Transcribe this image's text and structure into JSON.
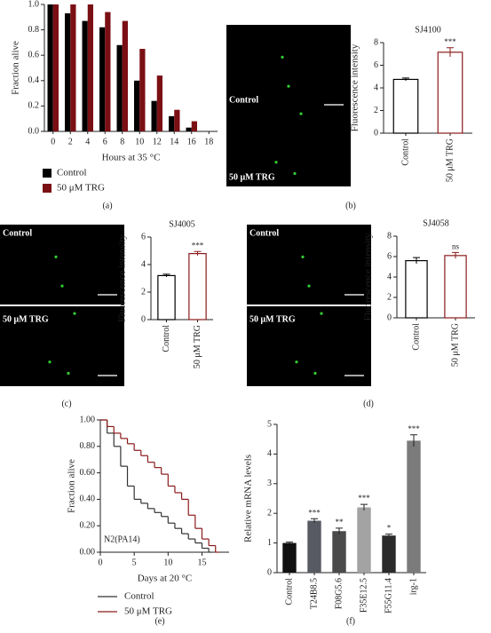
{
  "chart_data": [
    {
      "type": "bar",
      "panel_label": "(a)",
      "x_label": "Hours at 35 °C",
      "y_label": "Fraction alive",
      "categories": [
        "0",
        "2",
        "4",
        "6",
        "8",
        "10",
        "12",
        "14",
        "16",
        "18"
      ],
      "series": [
        {
          "name": "Control",
          "color": "#000000",
          "values": [
            1.0,
            0.93,
            0.87,
            0.82,
            0.68,
            0.4,
            0.24,
            0.12,
            0.03,
            0
          ]
        },
        {
          "name": "50 μM TRG",
          "color": "#7a0f14",
          "values": [
            1.0,
            1.0,
            1.0,
            0.94,
            0.87,
            0.65,
            0.44,
            0.17,
            0.08,
            0
          ]
        }
      ],
      "ylim": [
        0,
        1.0
      ],
      "yticks": [
        {
          "value": 0,
          "label": "0.0"
        },
        {
          "value": 0.2,
          "label": "0.2"
        },
        {
          "value": 0.4,
          "label": "0.4"
        },
        {
          "value": 0.6,
          "label": "0.6"
        },
        {
          "value": 0.8,
          "label": "0.8"
        },
        {
          "value": 1.0,
          "label": "1.0"
        }
      ]
    },
    {
      "type": "bar",
      "panel_label": "(b)",
      "title": "SJ4100",
      "y_label": "Fluorescence intensity",
      "image_labels": [
        "Control",
        "50 μM TRG"
      ],
      "categories": [
        "Control",
        "50 μM TRG"
      ],
      "values": [
        4.75,
        7.15
      ],
      "errors": [
        0.12,
        0.4
      ],
      "annotations": [
        null,
        "***"
      ],
      "colors": [
        "#000000",
        "#8b1a1a"
      ],
      "filled": false,
      "ylim": [
        0,
        8
      ],
      "yticks": [
        0,
        2,
        4,
        6,
        8
      ]
    },
    {
      "type": "bar",
      "panel_label": "(c)",
      "title": "SJ4005",
      "y_label": "Fluorescence intensity",
      "image_labels": [
        "Control",
        "50 μM TRG"
      ],
      "categories": [
        "Control",
        "50 μM TRG"
      ],
      "values": [
        3.2,
        4.8
      ],
      "errors": [
        0.1,
        0.15
      ],
      "annotations": [
        null,
        "***"
      ],
      "colors": [
        "#000000",
        "#8b1a1a"
      ],
      "filled": false,
      "ylim": [
        0,
        6
      ],
      "yticks": [
        0,
        2,
        4,
        6
      ]
    },
    {
      "type": "bar",
      "panel_label": "(d)",
      "title": "SJ4058",
      "y_label": "Fluorescence intensity",
      "image_labels": [
        "Control",
        "50 μM TRG"
      ],
      "categories": [
        "Control",
        "50 μM TRG"
      ],
      "values": [
        5.6,
        6.1
      ],
      "errors": [
        0.3,
        0.3
      ],
      "annotations": [
        null,
        "ns"
      ],
      "colors": [
        "#000000",
        "#8b1a1a"
      ],
      "filled": false,
      "ylim": [
        0,
        8
      ],
      "yticks": [
        0,
        2,
        4,
        6,
        8
      ]
    },
    {
      "type": "line",
      "step": true,
      "panel_label": "(e)",
      "x_label": "Days at 20 °C",
      "y_label": "Fraction alive",
      "annotation": "N2(PA14)",
      "series": [
        {
          "name": "Control",
          "color": "#333333",
          "x": [
            0,
            1,
            2,
            3,
            4,
            5,
            6,
            7,
            8,
            9,
            10,
            11,
            12,
            13,
            14,
            15,
            16
          ],
          "values": [
            1.0,
            0.9,
            0.8,
            0.65,
            0.5,
            0.4,
            0.37,
            0.33,
            0.3,
            0.27,
            0.22,
            0.18,
            0.14,
            0.1,
            0.07,
            0.03,
            0
          ]
        },
        {
          "name": "50 μM TRG",
          "color": "#8b1a1a",
          "x": [
            0,
            1,
            2,
            3,
            4,
            5,
            6,
            7,
            8,
            9,
            10,
            11,
            12,
            13,
            14,
            15,
            16,
            17
          ],
          "values": [
            1.0,
            0.95,
            0.9,
            0.86,
            0.82,
            0.77,
            0.73,
            0.68,
            0.64,
            0.59,
            0.5,
            0.45,
            0.4,
            0.28,
            0.18,
            0.1,
            0.05,
            0
          ]
        }
      ],
      "xlim": [
        0,
        19
      ],
      "xticks": [
        0,
        5,
        10,
        15
      ],
      "ylim": [
        0,
        1.0
      ],
      "yticks": [
        {
          "value": 0,
          "label": "0.00"
        },
        {
          "value": 0.2,
          "label": "0.20"
        },
        {
          "value": 0.4,
          "label": "0.40"
        },
        {
          "value": 0.6,
          "label": "0.60"
        },
        {
          "value": 0.8,
          "label": "0.80"
        },
        {
          "value": 1.0,
          "label": "1.00"
        }
      ]
    },
    {
      "type": "bar",
      "panel_label": "(f)",
      "y_label": "Relative mRNA levels",
      "categories": [
        "Control",
        "T24B8.5",
        "F08G5.6",
        "F35E12.5",
        "F55G11.4",
        "irg-1"
      ],
      "values": [
        1.0,
        1.75,
        1.4,
        2.2,
        1.25,
        4.45
      ],
      "errors": [
        0.03,
        0.07,
        0.1,
        0.1,
        0.05,
        0.2
      ],
      "annotations": [
        null,
        "***",
        "**",
        "***",
        "*",
        "***"
      ],
      "colors": [
        "#111111",
        "#575a63",
        "#4a4a4a",
        "#a3a3a3",
        "#2b2b2b",
        "#7b7b7b"
      ],
      "filled": true,
      "ylim": [
        0,
        5
      ],
      "yticks": [
        0,
        1,
        2,
        3,
        4,
        5
      ]
    }
  ]
}
